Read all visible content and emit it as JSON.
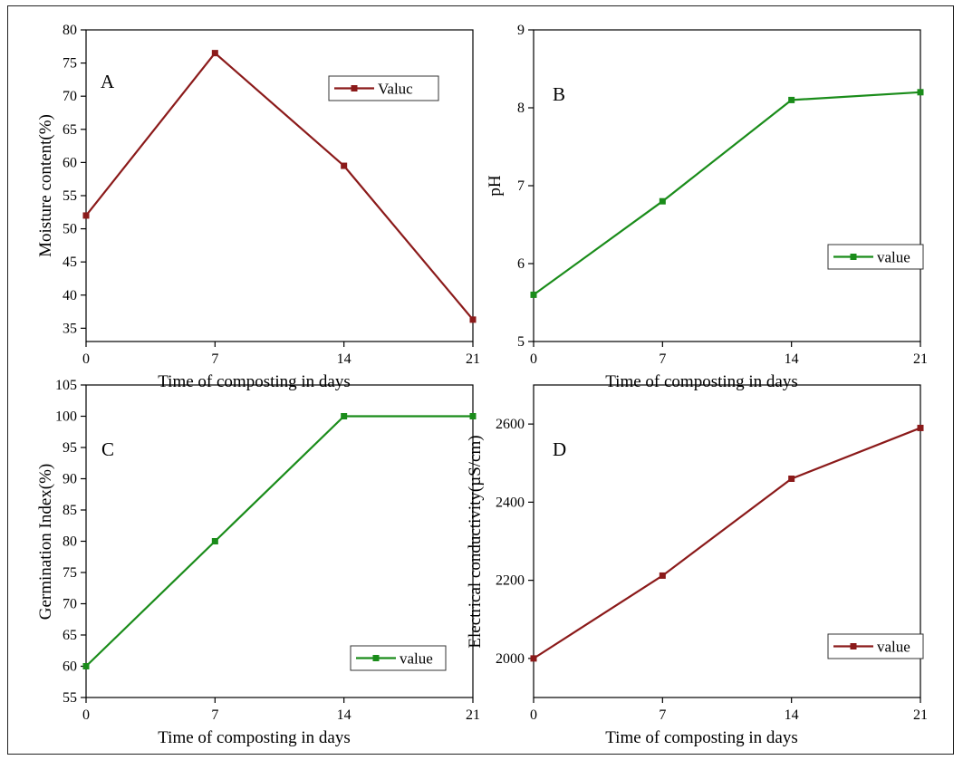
{
  "chart_data": [
    {
      "type": "line",
      "panel_label": "A",
      "xlabel": "Time of composting in days",
      "ylabel": "Moisture content(%)",
      "x": [
        0,
        7,
        14,
        21
      ],
      "xticks": [
        "0",
        "7",
        "14",
        "21"
      ],
      "xlim": [
        0,
        21
      ],
      "ylim": [
        33,
        80
      ],
      "yticks": [
        35,
        40,
        45,
        50,
        55,
        60,
        65,
        70,
        75,
        80
      ],
      "series": [
        {
          "name": "Valuc",
          "values": [
            52,
            76.5,
            59.5,
            36.3
          ],
          "color": "#8b1a1a"
        }
      ],
      "legend": "top-right",
      "grid": false
    },
    {
      "type": "line",
      "panel_label": "B",
      "xlabel": "Time of composting in days",
      "ylabel": "pH",
      "x": [
        0,
        7,
        14,
        21
      ],
      "xticks": [
        "0",
        "7",
        "14",
        "21"
      ],
      "xlim": [
        0,
        21
      ],
      "ylim": [
        5,
        9
      ],
      "yticks": [
        5,
        6,
        7,
        8,
        9
      ],
      "series": [
        {
          "name": "value",
          "values": [
            5.6,
            6.8,
            8.1,
            8.2
          ],
          "color": "#1a8c1a"
        }
      ],
      "legend": "bottom-right",
      "grid": false
    },
    {
      "type": "line",
      "panel_label": "C",
      "xlabel": "Time of composting in days",
      "ylabel": "Germination Index(%)",
      "x": [
        0,
        7,
        14,
        21
      ],
      "xticks": [
        "0",
        "7",
        "14",
        "21"
      ],
      "xlim": [
        0,
        21
      ],
      "ylim": [
        55,
        105
      ],
      "yticks": [
        55,
        60,
        65,
        70,
        75,
        80,
        85,
        90,
        95,
        100,
        105
      ],
      "series": [
        {
          "name": "value",
          "values": [
            60,
            80,
            100,
            100
          ],
          "color": "#1a8c1a"
        }
      ],
      "legend": "bottom-right",
      "grid": false
    },
    {
      "type": "line",
      "panel_label": "D",
      "xlabel": "Time of composting in days",
      "ylabel": "Electrical conductivity(µS/cm)",
      "x": [
        0,
        7,
        14,
        21
      ],
      "xticks": [
        "0",
        "7",
        "14",
        "21"
      ],
      "xlim": [
        0,
        21
      ],
      "ylim": [
        1900,
        2700
      ],
      "yticks": [
        2000,
        2200,
        2400,
        2600
      ],
      "series": [
        {
          "name": "value",
          "values": [
            2000,
            2212,
            2460,
            2590
          ],
          "color": "#8b1a1a"
        }
      ],
      "legend": "bottom-right",
      "grid": false
    }
  ]
}
